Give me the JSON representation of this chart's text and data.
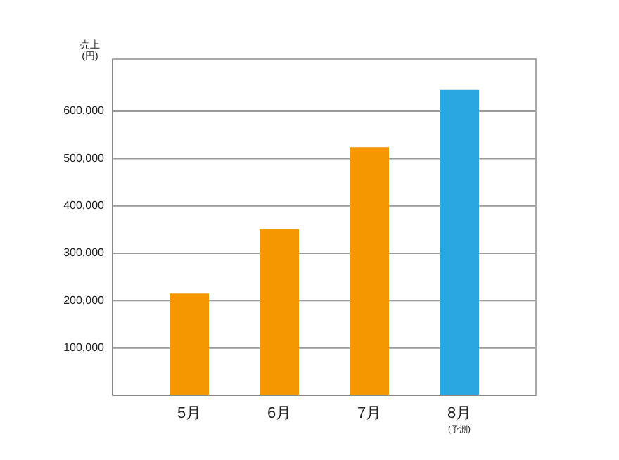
{
  "chart_data": {
    "type": "bar",
    "ylabel": "売上\n(円)",
    "categories": [
      "5月",
      "6月",
      "7月",
      "8月"
    ],
    "annotations": [
      "(予測)"
    ],
    "values": [
      215000,
      351000,
      524000,
      645000
    ],
    "colors": [
      "#f39800",
      "#f39800",
      "#f39800",
      "#29a8e0"
    ],
    "ylim": [
      0,
      710000
    ],
    "yticks": [
      {
        "value": 0,
        "label": null
      },
      {
        "value": 100000,
        "label": "100,000"
      },
      {
        "value": 200000,
        "label": "200,000"
      },
      {
        "value": 300000,
        "label": "300,000"
      },
      {
        "value": 400000,
        "label": "400,000"
      },
      {
        "value": 500000,
        "label": "500,000"
      },
      {
        "value": 600000,
        "label": "600,000"
      }
    ],
    "grid": "y"
  }
}
